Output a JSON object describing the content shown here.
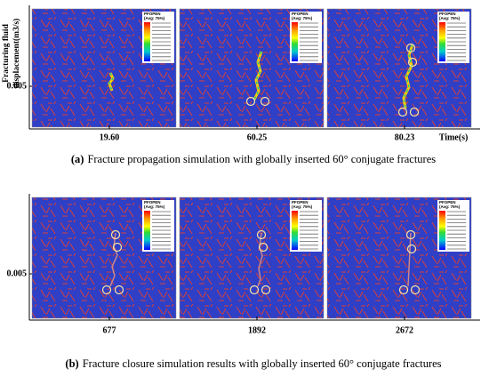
{
  "figure": {
    "y_axis_label": [
      "Fracturing fluid",
      "displacement(m3/s)"
    ],
    "legend_title": "PFOPEN",
    "legend_subtitle": "(Avg: 75%)",
    "parts": [
      {
        "y_tick": "0.005",
        "times": [
          "19.60",
          "60.25",
          "80.23"
        ],
        "x_axis_label": "Time(s)",
        "caption_tag": "(a)",
        "caption": "Fracture propagation simulation with globally inserted 60° conjugate fractures"
      },
      {
        "y_tick": "0.005",
        "times": [
          "677",
          "1892",
          "2672"
        ],
        "caption_tag": "(b)",
        "caption": "Fracture closure simulation results with globally inserted 60° conjugate fractures"
      }
    ]
  }
}
